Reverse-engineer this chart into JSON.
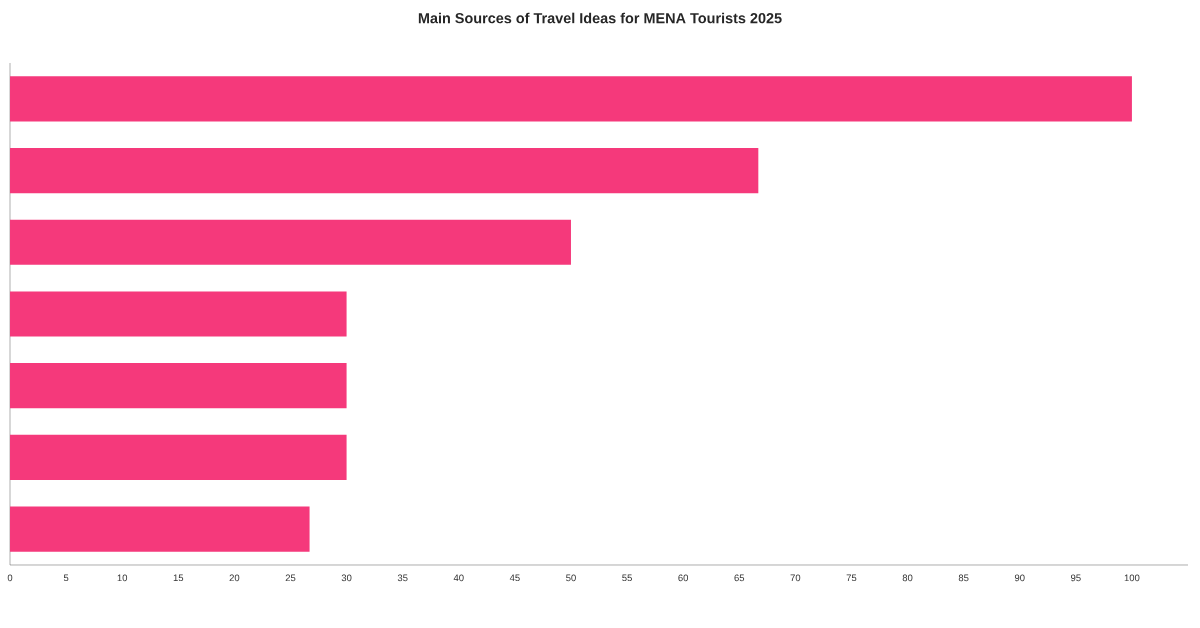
{
  "chart_data": {
    "type": "bar",
    "orientation": "horizontal",
    "title": "Main Sources of Travel Ideas for MENA Tourists 2025",
    "categories": [
      null,
      null,
      null,
      null,
      null,
      null,
      null
    ],
    "values": [
      100,
      66.7,
      50,
      30,
      30,
      30,
      26.7
    ],
    "color": "#f5397b",
    "xlim": [
      0,
      105
    ],
    "xticks": [
      0,
      5,
      10,
      15,
      20,
      25,
      30,
      35,
      40,
      45,
      50,
      55,
      60,
      65,
      70,
      75,
      80,
      85,
      90,
      95,
      100
    ],
    "grid": false
  }
}
